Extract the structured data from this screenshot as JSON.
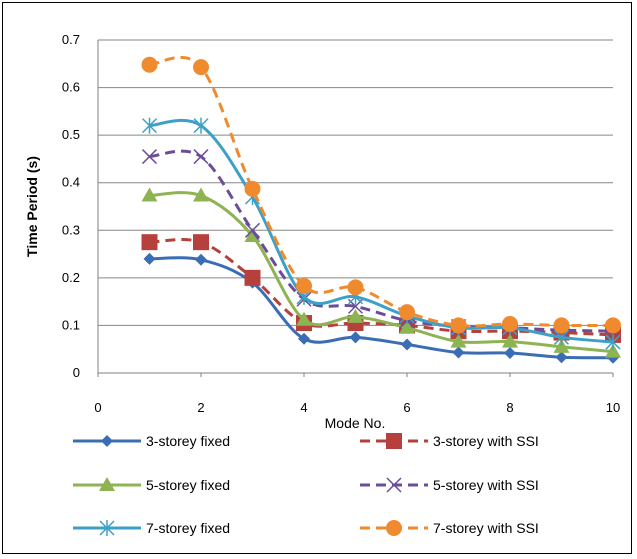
{
  "chart_data": {
    "type": "line",
    "title": "",
    "xlabel": "Mode No.",
    "ylabel": "Time Period (s)",
    "xlim": [
      0,
      10
    ],
    "ylim": [
      0,
      0.7
    ],
    "x_ticks": [
      "0",
      "2",
      "4",
      "6",
      "8",
      "10"
    ],
    "y_ticks": [
      "0",
      "0.1",
      "0.2",
      "0.3",
      "0.4",
      "0.5",
      "0.6",
      "0.7"
    ],
    "grid": "horizontal",
    "legend_position": "bottom",
    "x": [
      1,
      2,
      3,
      4,
      5,
      6,
      7,
      8,
      9,
      10
    ],
    "series": [
      {
        "name": "3-storey fixed",
        "color": "#3B6DB5",
        "dash": "solid",
        "marker": "diamond",
        "values": [
          0.24,
          0.238,
          0.19,
          0.072,
          0.075,
          0.06,
          0.043,
          0.042,
          0.033,
          0.032
        ]
      },
      {
        "name": "3-storey with SSI",
        "color": "#B5403C",
        "dash": "dashed",
        "marker": "square",
        "values": [
          0.275,
          0.275,
          0.2,
          0.105,
          0.105,
          0.1,
          0.088,
          0.088,
          0.085,
          0.08
        ]
      },
      {
        "name": "5-storey fixed",
        "color": "#8DB352",
        "dash": "solid",
        "marker": "triangle",
        "values": [
          0.373,
          0.373,
          0.288,
          0.112,
          0.118,
          0.095,
          0.066,
          0.066,
          0.055,
          0.045
        ]
      },
      {
        "name": "5-storey with SSI",
        "color": "#6C4E98",
        "dash": "dashed",
        "marker": "x",
        "values": [
          0.455,
          0.455,
          0.3,
          0.155,
          0.14,
          0.11,
          0.098,
          0.095,
          0.09,
          0.088
        ]
      },
      {
        "name": "7-storey fixed",
        "color": "#3DA1C7",
        "dash": "solid",
        "marker": "asterisk",
        "values": [
          0.52,
          0.52,
          0.37,
          0.16,
          0.16,
          0.12,
          0.095,
          0.095,
          0.075,
          0.065
        ]
      },
      {
        "name": "7-storey with SSI",
        "color": "#F08A2E",
        "dash": "dashed",
        "marker": "circle",
        "values": [
          0.648,
          0.643,
          0.387,
          0.183,
          0.18,
          0.128,
          0.1,
          0.103,
          0.1,
          0.1
        ]
      }
    ]
  }
}
